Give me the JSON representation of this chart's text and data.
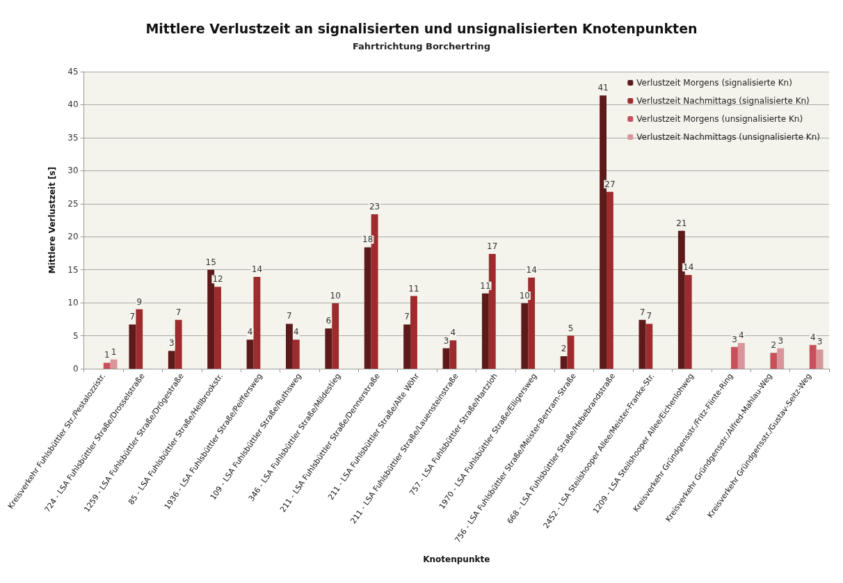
{
  "chart_data": {
    "type": "bar",
    "title": "Mittlere Verlustzeit an signalisierten und unsignalisierten Knotenpunkten",
    "subtitle": "Fahrtrichtung Borchertring",
    "xlabel": "Knotenpunkte",
    "ylabel": "Mittlere Verlustzeit [s]",
    "categories": [
      "Kreisverkehr Fuhlsbüttler Str./Pestalozzistr.",
      "724 - LSA Fuhlsbüttler Straße/Drosselstraße",
      "1259 - LSA Fuhlsbüttler Straße/Drögestraße",
      "85 - LSA Fuhlsbüttler Straße/Hellbrookstr.",
      "1936 - LSA Fuhlsbüttler Straße/Peiffersweg",
      "109 - LSA Fuhlsbüttler Straße/Ruthsweg",
      "346 - LSA Fuhlsbüttler Straße/Mildestieg",
      "211 - LSA Fuhlsbüttler Straße/Dennerstraße",
      "211 - LSA Fuhlsbüttler Straße/Alte Wöhr",
      "211 - LSA Fuhlsbüttler Straße/Lauensteinstraße",
      "757 - LSA Fuhlsbüttler Straße/Hartzloh",
      "1970 - LSA Fuhlsbüttler Straße/Elligersweg",
      "756 - LSA Fuhlsbüttler Straße/Meister-Bertram-Straße",
      "668 - LSA Fuhlsbüttler Straße/Hebebrandstraße",
      "2452 - LSA Steilshooper Allee/Meister-Franke-Str.",
      "1209 - LSA Steilshooper Allee/Eichenlohweg",
      "Kreisverkehr Gründgensstr./Fritz-Flinte-Ring",
      "Kreisverkehr Gründgensstr./Alfred-Mahlau-Weg",
      "Kreisverkehr Gründgensstr./Gustav-Seitz-Weg"
    ],
    "series": [
      {
        "name": "Verlustzeit Morgens (signalisierte Kn)",
        "color": "#5c1a1a",
        "values": [
          null,
          6.7,
          2.7,
          15.0,
          4.4,
          6.8,
          6.1,
          18.4,
          6.7,
          3.1,
          11.4,
          9.9,
          1.9,
          41.4,
          7.4,
          20.9,
          null,
          null,
          null
        ],
        "value_labels": [
          null,
          "7",
          "3",
          "15",
          "4",
          "7",
          "6",
          "18",
          "7",
          "3",
          "11",
          "10",
          "2",
          "41",
          "7",
          "21",
          null,
          null,
          null
        ]
      },
      {
        "name": "Verlustzeit Nachmittags (signalisierte Kn)",
        "color": "#9e2b2e",
        "values": [
          null,
          9.0,
          7.4,
          12.4,
          13.9,
          4.4,
          9.9,
          23.4,
          11.0,
          4.3,
          17.4,
          13.8,
          5.0,
          26.8,
          6.8,
          14.2,
          null,
          null,
          null
        ],
        "value_labels": [
          null,
          "9",
          "7",
          "12",
          "14",
          "4",
          "10",
          "23",
          "11",
          "4",
          "17",
          "14",
          "5",
          "27",
          "7",
          "14",
          null,
          null,
          null
        ]
      },
      {
        "name": "Verlustzeit Morgens (unsignalisierte Kn)",
        "color": "#c8505a",
        "values": [
          0.9,
          null,
          null,
          null,
          null,
          null,
          null,
          null,
          null,
          null,
          null,
          null,
          null,
          null,
          null,
          null,
          3.3,
          2.4,
          3.6
        ],
        "value_labels": [
          "1",
          null,
          null,
          null,
          null,
          null,
          null,
          null,
          null,
          null,
          null,
          null,
          null,
          null,
          null,
          null,
          "3",
          "2",
          "4"
        ]
      },
      {
        "name": "Verlustzeit Nachmittags (unsignalisierte Kn)",
        "color": "#d9959a",
        "values": [
          1.4,
          null,
          null,
          null,
          null,
          null,
          null,
          null,
          null,
          null,
          null,
          null,
          null,
          null,
          null,
          null,
          3.9,
          3.1,
          2.9
        ],
        "value_labels": [
          "1",
          null,
          null,
          null,
          null,
          null,
          null,
          null,
          null,
          null,
          null,
          null,
          null,
          null,
          null,
          null,
          "4",
          "3",
          "3"
        ]
      }
    ],
    "ylim": [
      0,
      45
    ],
    "yticks": [
      0,
      5,
      10,
      15,
      20,
      25,
      30,
      35,
      40,
      45
    ],
    "grid": "y",
    "legend": "top right"
  }
}
